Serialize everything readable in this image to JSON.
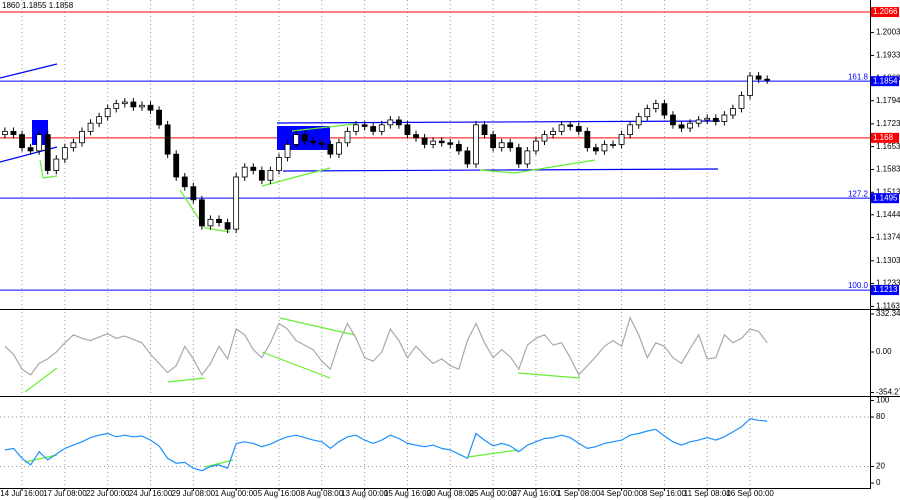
{
  "chart_data": [
    {
      "type": "candlestick",
      "header": "1860 1.1855 1.1858",
      "categories": [
        null,
        null,
        "14 Jul 16:00",
        null,
        null,
        null,
        null,
        "17 Jul 08:00",
        null,
        null,
        null,
        null,
        "22 Jul 00:00",
        null,
        null,
        null,
        null,
        "24 Jul 16:00",
        null,
        null,
        null,
        null,
        "29 Jul 08:00",
        null,
        null,
        null,
        null,
        "1 Aug 00:00",
        null,
        null,
        null,
        null,
        "5 Aug 16:00",
        null,
        null,
        null,
        null,
        "8 Aug 08:00",
        null,
        null,
        null,
        null,
        "13 Aug 00:00",
        null,
        null,
        null,
        null,
        "15 Aug 16:00",
        null,
        null,
        null,
        null,
        "20 Aug 08:00",
        null,
        null,
        null,
        null,
        "25 Aug 00:00",
        null,
        null,
        null,
        null,
        "27 Aug 16:00",
        null,
        null,
        null,
        null,
        "1 Sep 08:00",
        null,
        null,
        null,
        null,
        "4 Sep 00:00",
        null,
        null,
        null,
        null,
        "8 Sep 16:00",
        null,
        null,
        null,
        null,
        "11 Sep 08:00",
        null,
        null,
        null,
        null,
        "16 Sep 00:00",
        null,
        null
      ],
      "open": [
        1.169,
        1.17,
        1.169,
        1.165,
        1.164,
        1.169,
        1.158,
        1.1615,
        1.165,
        1.1665,
        1.17,
        1.1725,
        1.1745,
        1.177,
        1.1785,
        1.179,
        1.1775,
        1.178,
        1.1765,
        1.172,
        1.163,
        1.156,
        1.153,
        1.149,
        1.141,
        1.143,
        1.142,
        1.14,
        1.156,
        1.159,
        1.158,
        1.155,
        1.158,
        1.162,
        1.166,
        1.169,
        1.167,
        1.1665,
        1.166,
        1.163,
        1.1665,
        1.17,
        1.172,
        1.1715,
        1.17,
        1.172,
        1.1735,
        1.172,
        1.169,
        1.168,
        1.166,
        1.167,
        1.1665,
        1.166,
        1.164,
        1.16,
        1.172,
        1.169,
        1.165,
        1.1665,
        1.165,
        1.16,
        1.164,
        1.167,
        1.169,
        1.17,
        1.172,
        1.1715,
        1.17,
        1.165,
        1.164,
        1.166,
        1.166,
        1.169,
        1.172,
        1.1745,
        1.177,
        1.1785,
        1.175,
        1.172,
        1.171,
        1.1725,
        1.1735,
        1.174,
        1.173,
        1.175,
        1.177,
        1.181,
        1.187,
        1.186
      ],
      "high": [
        1.1712,
        1.1712,
        1.1702,
        1.1662,
        1.1702,
        1.1702,
        1.1627,
        1.1662,
        1.1677,
        1.1712,
        1.1737,
        1.1757,
        1.1782,
        1.1797,
        1.1802,
        1.1802,
        1.1792,
        1.1792,
        1.1777,
        1.1732,
        1.1642,
        1.1572,
        1.1542,
        1.1502,
        1.1442,
        1.1442,
        1.1432,
        1.1572,
        1.1602,
        1.1602,
        1.1592,
        1.1592,
        1.1632,
        1.1672,
        1.1702,
        1.1702,
        1.1682,
        1.1677,
        1.1672,
        1.1677,
        1.1712,
        1.1732,
        1.1732,
        1.1727,
        1.1732,
        1.1747,
        1.1747,
        1.1732,
        1.1702,
        1.1692,
        1.1682,
        1.1682,
        1.1677,
        1.1672,
        1.1652,
        1.1732,
        1.1732,
        1.1702,
        1.1677,
        1.1677,
        1.1662,
        1.1652,
        1.1682,
        1.1702,
        1.1712,
        1.1732,
        1.1732,
        1.1727,
        1.1712,
        1.1662,
        1.1672,
        1.1672,
        1.1702,
        1.1732,
        1.1757,
        1.1782,
        1.1797,
        1.1797,
        1.1762,
        1.1732,
        1.1737,
        1.1747,
        1.1752,
        1.1752,
        1.1762,
        1.1782,
        1.1822,
        1.1882,
        1.1882,
        1.1872
      ],
      "low": [
        1.1678,
        1.1678,
        1.1638,
        1.1628,
        1.1628,
        1.1568,
        1.1568,
        1.1603,
        1.1638,
        1.1653,
        1.1688,
        1.1713,
        1.1733,
        1.1758,
        1.1773,
        1.1763,
        1.1763,
        1.1753,
        1.1708,
        1.1618,
        1.1548,
        1.1518,
        1.1478,
        1.1398,
        1.1398,
        1.1408,
        1.1388,
        1.1388,
        1.1548,
        1.1568,
        1.1538,
        1.1538,
        1.1568,
        1.1608,
        1.1648,
        1.1658,
        1.1653,
        1.1648,
        1.1618,
        1.1618,
        1.1653,
        1.1688,
        1.1703,
        1.1688,
        1.1688,
        1.1708,
        1.1708,
        1.1678,
        1.1668,
        1.1648,
        1.1648,
        1.1653,
        1.1648,
        1.1628,
        1.1588,
        1.1588,
        1.1678,
        1.1638,
        1.1638,
        1.1638,
        1.1588,
        1.1588,
        1.1628,
        1.1658,
        1.1678,
        1.1688,
        1.1703,
        1.1688,
        1.1638,
        1.1628,
        1.1628,
        1.1648,
        1.1648,
        1.1678,
        1.1708,
        1.1733,
        1.1758,
        1.1738,
        1.1708,
        1.1698,
        1.1698,
        1.1713,
        1.1723,
        1.1718,
        1.1718,
        1.1738,
        1.1758,
        1.1798,
        1.1848,
        1.1846
      ],
      "close": [
        1.17,
        1.169,
        1.165,
        1.164,
        1.169,
        1.158,
        1.1615,
        1.165,
        1.1665,
        1.17,
        1.1725,
        1.1745,
        1.177,
        1.1785,
        1.179,
        1.1775,
        1.178,
        1.1765,
        1.172,
        1.163,
        1.156,
        1.153,
        1.149,
        1.141,
        1.143,
        1.142,
        1.14,
        1.156,
        1.159,
        1.158,
        1.155,
        1.158,
        1.162,
        1.166,
        1.169,
        1.167,
        1.1665,
        1.166,
        1.163,
        1.1665,
        1.17,
        1.172,
        1.1715,
        1.17,
        1.172,
        1.1735,
        1.172,
        1.169,
        1.168,
        1.166,
        1.167,
        1.1665,
        1.166,
        1.164,
        1.16,
        1.172,
        1.169,
        1.165,
        1.1665,
        1.165,
        1.16,
        1.164,
        1.167,
        1.169,
        1.17,
        1.172,
        1.1715,
        1.17,
        1.165,
        1.164,
        1.166,
        1.166,
        1.169,
        1.172,
        1.1745,
        1.177,
        1.1785,
        1.175,
        1.172,
        1.171,
        1.1725,
        1.1735,
        1.174,
        1.173,
        1.175,
        1.177,
        1.181,
        1.187,
        1.186,
        1.1858
      ],
      "ylim": [
        1.1158,
        1.2103
      ],
      "yticks": [
        1.2003,
        1.1933,
        1.1863,
        1.1794,
        1.1723,
        1.1653,
        1.1583,
        1.1513,
        1.1444,
        1.1374,
        1.1303,
        1.1233,
        1.1163
      ],
      "levels": [
        {
          "value": 1.2066,
          "color": "#ff0000"
        },
        {
          "value": 1.1854,
          "color": "#0000ff",
          "label": "161.8"
        },
        {
          "value": 1.168,
          "color": "#ff0000"
        },
        {
          "value": 1.1495,
          "color": "#0000ff",
          "label": "127.2"
        },
        {
          "value": 1.1213,
          "color": "#0000ff",
          "label": "100.0"
        }
      ],
      "grid": true
    },
    {
      "type": "line",
      "series": [
        {
          "color": "#a9a9a9",
          "values": [
            50,
            -20,
            -150,
            -200,
            -100,
            -60,
            0,
            80,
            150,
            120,
            100,
            130,
            160,
            120,
            140,
            110,
            80,
            -20,
            -100,
            -180,
            -120,
            50,
            -60,
            -200,
            -100,
            50,
            -60,
            200,
            150,
            20,
            -50,
            80,
            250,
            200,
            100,
            60,
            20,
            -80,
            -150,
            80,
            250,
            120,
            -50,
            -80,
            0,
            200,
            100,
            -50,
            50,
            -30,
            -100,
            -60,
            -120,
            -150,
            100,
            250,
            80,
            -50,
            20,
            -40,
            -150,
            60,
            120,
            150,
            60,
            80,
            -50,
            -200,
            -120,
            -40,
            50,
            100,
            50,
            300,
            150,
            -50,
            80,
            50,
            -50,
            -100,
            30,
            150,
            -60,
            -50,
            150,
            80,
            120,
            200,
            180,
            80
          ]
        }
      ],
      "ylim": [
        -375.9,
        358.4
      ],
      "yticks": [
        332.3467,
        {
          "value": 0,
          "label": "0.00"
        },
        -354.279
      ]
    },
    {
      "type": "line",
      "series": [
        {
          "color": "#1e90ff",
          "values": [
            40,
            42,
            30,
            22,
            38,
            28,
            35,
            42,
            46,
            50,
            55,
            58,
            60,
            56,
            58,
            56,
            57,
            52,
            45,
            30,
            24,
            25,
            18,
            15,
            20,
            22,
            18,
            48,
            50,
            48,
            44,
            47,
            52,
            56,
            58,
            55,
            52,
            50,
            42,
            50,
            56,
            58,
            52,
            48,
            52,
            58,
            54,
            48,
            46,
            44,
            46,
            42,
            40,
            35,
            30,
            60,
            52,
            45,
            48,
            45,
            38,
            46,
            50,
            54,
            55,
            58,
            55,
            48,
            42,
            44,
            48,
            50,
            52,
            58,
            60,
            63,
            65,
            57,
            50,
            46,
            50,
            52,
            55,
            52,
            56,
            62,
            68,
            78,
            76,
            75
          ]
        }
      ],
      "ylim": [
        -6,
        103
      ],
      "yticks": [
        100,
        80,
        20,
        0
      ],
      "levels": [
        {
          "value": 80
        },
        {
          "value": 20
        }
      ]
    }
  ]
}
